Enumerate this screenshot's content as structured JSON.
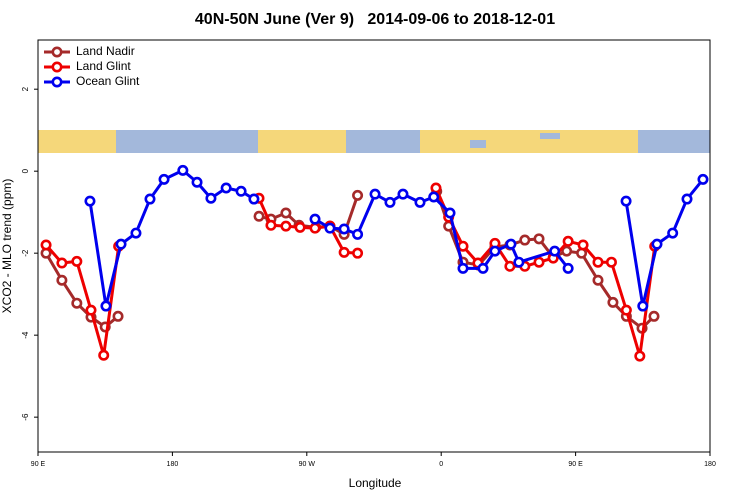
{
  "chart_data": {
    "type": "line",
    "title": "40N-50N June (Ver 9)   2014-09-06 to 2018-12-01",
    "x_label": "Longitude",
    "y_label": "XCO2 - MLO trend (ppm)",
    "xlim": [
      90,
      540
    ],
    "ylim": [
      -6.85,
      3.2
    ],
    "xticks": [
      {
        "value": 90,
        "label": "90 E"
      },
      180,
      {
        "value": 270,
        "label": "90 W"
      },
      {
        "value": 360,
        "label": "0"
      },
      {
        "value": 450,
        "label": "90 E"
      },
      {
        "value": 540,
        "label": "180"
      }
    ],
    "yticks": [
      -6,
      -4,
      -2,
      0,
      2
    ],
    "grid": false,
    "legend": "top-left",
    "series": [
      {
        "name": "Land Nadir",
        "color": "#a52a2a",
        "x": [
          95.4,
          106,
          116,
          125.5,
          135,
          143.6,
          null,
          238,
          246,
          256,
          264.8,
          276,
          285.5,
          295,
          304,
          null,
          357,
          365,
          374.6,
          385,
          396,
          406,
          416,
          425.5,
          435,
          444,
          454,
          465,
          475,
          484,
          494.5,
          502.5
        ],
        "values": [
          -2.0,
          -2.66,
          -3.22,
          -3.56,
          -3.8,
          -3.54,
          null,
          -1.1,
          -1.17,
          -1.02,
          -1.32,
          -1.37,
          -1.34,
          -1.54,
          -0.59,
          null,
          -0.49,
          -1.34,
          -2.22,
          -2.29,
          -1.85,
          -1.8,
          -1.68,
          -1.65,
          -2.1,
          -1.95,
          -2.0,
          -2.66,
          -3.2,
          -3.54,
          -3.83,
          -3.54
        ]
      },
      {
        "name": "Land Glint",
        "color": "#ee0000",
        "x": [
          95.4,
          106,
          116,
          125.5,
          134,
          144,
          null,
          238,
          246,
          256,
          265.5,
          275.5,
          285.5,
          295,
          304,
          null,
          356.5,
          365,
          374.6,
          384.6,
          396,
          406,
          416,
          425.5,
          435,
          445,
          455,
          465,
          474,
          484,
          493,
          503
        ],
        "values": [
          -1.8,
          -2.24,
          -2.2,
          -3.39,
          -4.49,
          -1.83,
          null,
          -0.66,
          -1.32,
          -1.34,
          -1.37,
          -1.39,
          -1.34,
          -1.98,
          -2.0,
          null,
          -0.41,
          -1.12,
          -1.83,
          -2.24,
          -1.76,
          -2.32,
          -2.32,
          -2.22,
          -2.12,
          -1.71,
          -1.8,
          -2.22,
          -2.22,
          -3.39,
          -4.51,
          -1.83
        ]
      },
      {
        "name": "Ocean Glint",
        "color": "#0000ee",
        "x": [
          124.8,
          135.5,
          145.6,
          155.6,
          165,
          174.4,
          187,
          196.5,
          205.8,
          216,
          226,
          234.6,
          null,
          275.5,
          285.5,
          295,
          304,
          315.7,
          325.7,
          334.4,
          345.8,
          355,
          365.9,
          374.6,
          388,
          396,
          406.7,
          412,
          436,
          445,
          null,
          483.8,
          495,
          504.5,
          515,
          524.6,
          535.3
        ],
        "values": [
          -0.73,
          -3.29,
          -1.78,
          -1.51,
          -0.68,
          -0.2,
          0.02,
          -0.27,
          -0.66,
          -0.41,
          -0.49,
          -0.68,
          null,
          -1.17,
          -1.39,
          -1.41,
          -1.54,
          -0.56,
          -0.76,
          -0.56,
          -0.76,
          -0.63,
          -1.02,
          -2.37,
          -2.37,
          -1.95,
          -1.78,
          -2.22,
          -1.95,
          -2.37,
          null,
          -0.73,
          -3.29,
          -1.78,
          -1.51,
          -0.68,
          -0.2
        ]
      }
    ]
  }
}
